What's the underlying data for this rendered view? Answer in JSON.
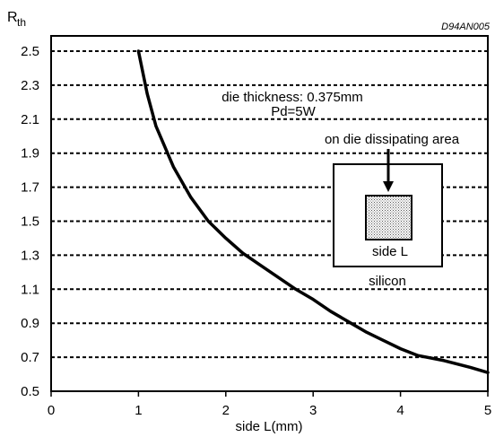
{
  "figure_code": "D94AN005",
  "chart_data": {
    "type": "line",
    "ylabel_main": "R",
    "ylabel_sub": "th",
    "xlabel": "side L(mm)",
    "xlim": [
      0,
      5
    ],
    "ylim": [
      0.5,
      2.6
    ],
    "grid": "horizontal dashed",
    "x_ticks": [
      "0",
      "1",
      "2",
      "3",
      "4",
      "5"
    ],
    "y_ticks": [
      "0.5",
      "0.7",
      "0.9",
      "1.1",
      "1.3",
      "1.5",
      "1.7",
      "1.9",
      "2.1",
      "2.3",
      "2.5"
    ],
    "series": [
      {
        "x": [
          1.0,
          1.1,
          1.2,
          1.4,
          1.6,
          1.8,
          2.0,
          2.2,
          2.4,
          2.6,
          2.8,
          3.0,
          3.2,
          3.4,
          3.6,
          3.8,
          4.0,
          4.2,
          4.5,
          4.8,
          5.0
        ],
        "y": [
          2.5,
          2.25,
          2.06,
          1.82,
          1.64,
          1.5,
          1.4,
          1.31,
          1.24,
          1.17,
          1.1,
          1.04,
          0.97,
          0.91,
          0.85,
          0.8,
          0.75,
          0.71,
          0.68,
          0.64,
          0.61
        ]
      }
    ],
    "annotations": {
      "thickness": "die thickness: 0.375mm",
      "power": "Pd=5W",
      "area": "on die dissipating area",
      "side": "side L",
      "material": "silicon"
    }
  }
}
